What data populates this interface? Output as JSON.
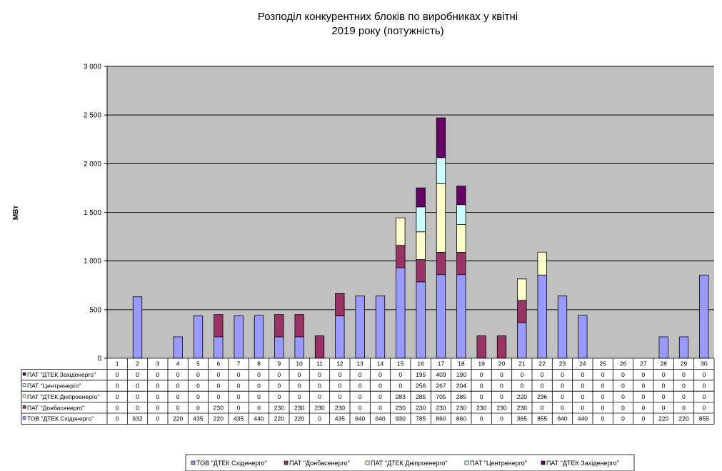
{
  "chart_data": {
    "type": "bar",
    "stacked": true,
    "title_line1": "Розподіл конкурентних  блоків по виробниках  у квітні",
    "title_line2": "2019 року  (потужність)",
    "ylabel": "МВт",
    "ylim": [
      0,
      3000
    ],
    "yticks": [
      0,
      500,
      1000,
      1500,
      2000,
      2500,
      3000
    ],
    "ytick_labels": [
      "0",
      "500",
      "1 000",
      "1 500",
      "2 000",
      "2 500",
      "3 000"
    ],
    "grid": true,
    "legend_position": "bottom",
    "categories": [
      "1",
      "2",
      "3",
      "4",
      "5",
      "6",
      "7",
      "8",
      "9",
      "10",
      "11",
      "12",
      "13",
      "14",
      "15",
      "16",
      "17",
      "18",
      "19",
      "20",
      "21",
      "22",
      "23",
      "24",
      "25",
      "26",
      "27",
      "28",
      "29",
      "30"
    ],
    "series": [
      {
        "name": "ТОВ \"ДТЕК Східенерго\"",
        "color": "#9999ff",
        "values": [
          0,
          632,
          0,
          220,
          435,
          220,
          435,
          440,
          220,
          220,
          0,
          435,
          640,
          640,
          930,
          785,
          860,
          860,
          0,
          0,
          365,
          855,
          640,
          440,
          0,
          0,
          0,
          220,
          220,
          855
        ]
      },
      {
        "name": "ПАТ \"Донбасенерго\"",
        "color": "#993366",
        "values": [
          0,
          0,
          0,
          0,
          0,
          230,
          0,
          0,
          230,
          230,
          230,
          230,
          0,
          0,
          230,
          230,
          230,
          230,
          230,
          230,
          230,
          0,
          0,
          0,
          0,
          0,
          0,
          0,
          0,
          0
        ]
      },
      {
        "name": "ПАТ \"ДТЕК Дніпроенерго\"",
        "color": "#ffffcc",
        "values": [
          0,
          0,
          0,
          0,
          0,
          0,
          0,
          0,
          0,
          0,
          0,
          0,
          0,
          0,
          283,
          285,
          705,
          285,
          0,
          0,
          220,
          236,
          0,
          0,
          0,
          0,
          0,
          0,
          0,
          0
        ]
      },
      {
        "name": "ПАТ \"Центренерго\"",
        "color": "#ccffff",
        "values": [
          0,
          0,
          0,
          0,
          0,
          0,
          0,
          0,
          0,
          0,
          0,
          0,
          0,
          0,
          0,
          256,
          267,
          204,
          0,
          0,
          0,
          0,
          0,
          0,
          0,
          0,
          0,
          0,
          0,
          0
        ]
      },
      {
        "name": "ПАТ \"ДТЕК Західенерго\"",
        "color": "#660066",
        "values": [
          0,
          0,
          0,
          0,
          0,
          0,
          0,
          0,
          0,
          0,
          0,
          0,
          0,
          0,
          0,
          195,
          409,
          190,
          0,
          0,
          0,
          0,
          0,
          0,
          0,
          0,
          0,
          0,
          0,
          0
        ]
      }
    ],
    "table_row_order": [
      4,
      3,
      2,
      1,
      0
    ],
    "legend_order": [
      0,
      1,
      2,
      3,
      4
    ]
  }
}
